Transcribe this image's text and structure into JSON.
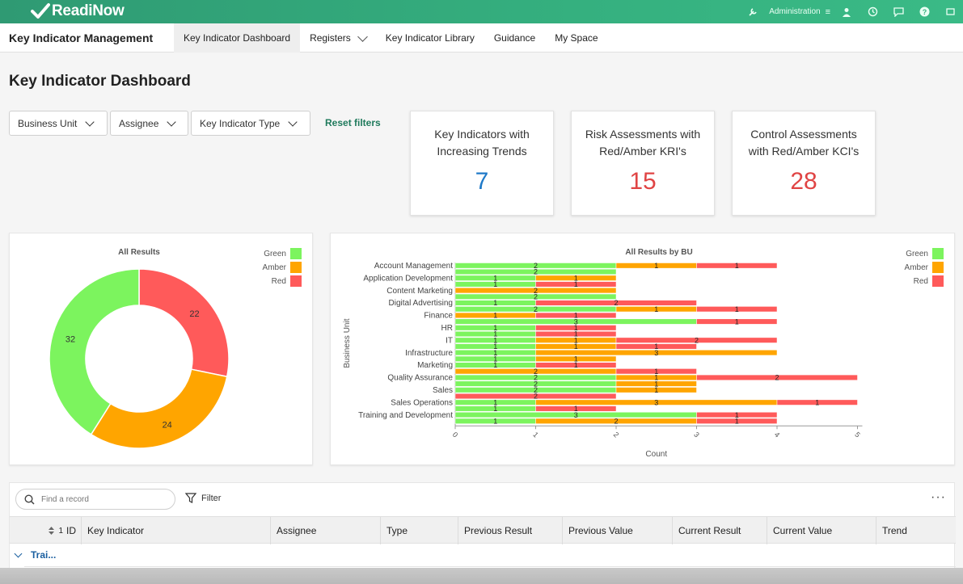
{
  "brand": {
    "name": "ReadiNow"
  },
  "topbar": {
    "admin_label": "Administration"
  },
  "nav": {
    "app_title": "Key Indicator Management",
    "tabs": [
      {
        "label": "Key Indicator Dashboard",
        "active": true
      },
      {
        "label": "Registers",
        "dropdown": true
      },
      {
        "label": "Key Indicator Library"
      },
      {
        "label": "Guidance"
      },
      {
        "label": "My Space"
      }
    ]
  },
  "page": {
    "title": "Key Indicator Dashboard"
  },
  "filters": {
    "business_unit": "Business Unit",
    "assignee": "Assignee",
    "type": "Key Indicator Type",
    "reset": "Reset filters"
  },
  "kpis": [
    {
      "label_line1": "Key Indicators with",
      "label_line2": "Increasing Trends",
      "value": "7",
      "color": "#1f7ac8"
    },
    {
      "label_line1": "Risk Assessments with",
      "label_line2": "Red/Amber KRI's",
      "value": "15",
      "color": "#e04444"
    },
    {
      "label_line1": "Control Assessments",
      "label_line2": "with Red/Amber KCI's",
      "value": "28",
      "color": "#e04444"
    }
  ],
  "colors": {
    "green": "#7cf45e",
    "amber": "#ffa500",
    "red": "#ff5a5a"
  },
  "chart_data": [
    {
      "type": "pie",
      "title": "All Results",
      "categories": [
        "Green",
        "Amber",
        "Red"
      ],
      "values": [
        32,
        24,
        22
      ],
      "legend": "top-right"
    },
    {
      "type": "bar",
      "orientation": "horizontal",
      "stacked": true,
      "title": "All Results by BU",
      "xlabel": "Count",
      "ylabel": "Business Unit",
      "xlim": [
        0,
        5
      ],
      "xticks": [
        "0",
        "1",
        "2",
        "3",
        "4",
        "5"
      ],
      "legend": "top-right",
      "legend_entries": [
        "Green",
        "Amber",
        "Red"
      ],
      "rows": [
        {
          "label": "Account Management",
          "g": 2,
          "a": 1,
          "r": 1
        },
        {
          "label": "",
          "g": 2,
          "a": 0,
          "r": 0
        },
        {
          "label": "Application Development",
          "g": 1,
          "a": 1,
          "r": 0
        },
        {
          "label": "",
          "g": 1,
          "a": 0,
          "r": 1
        },
        {
          "label": "Content Marketing",
          "g": 0,
          "a": 2,
          "r": 0
        },
        {
          "label": "",
          "g": 2,
          "a": 0,
          "r": 0
        },
        {
          "label": "Digital Advertising",
          "g": 1,
          "a": 0,
          "r": 2
        },
        {
          "label": "",
          "g": 2,
          "a": 1,
          "r": 1
        },
        {
          "label": "Finance",
          "g": 0,
          "a": 1,
          "r": 1
        },
        {
          "label": "",
          "g": 3,
          "a": 0,
          "r": 1
        },
        {
          "label": "HR",
          "g": 1,
          "a": 0,
          "r": 1
        },
        {
          "label": "",
          "g": 1,
          "a": 0,
          "r": 1
        },
        {
          "label": "IT",
          "g": 1,
          "a": 1,
          "r": 2
        },
        {
          "label": "",
          "g": 1,
          "a": 1,
          "r": 1
        },
        {
          "label": "Infrastructure",
          "g": 1,
          "a": 3,
          "r": 0
        },
        {
          "label": "",
          "g": 1,
          "a": 1,
          "r": 0
        },
        {
          "label": "Marketing",
          "g": 1,
          "a": 0,
          "r": 1
        },
        {
          "label": "",
          "g": 0,
          "a": 2,
          "r": 1
        },
        {
          "label": "Quality Assurance",
          "g": 2,
          "a": 1,
          "r": 2
        },
        {
          "label": "",
          "g": 2,
          "a": 1,
          "r": 0
        },
        {
          "label": "Sales",
          "g": 2,
          "a": 1,
          "r": 0
        },
        {
          "label": "",
          "g": 0,
          "a": 0,
          "r": 2
        },
        {
          "label": "Sales Operations",
          "g": 1,
          "a": 3,
          "r": 1
        },
        {
          "label": "",
          "g": 1,
          "a": 0,
          "r": 1
        },
        {
          "label": "Training and Development",
          "g": 3,
          "a": 0,
          "r": 1
        },
        {
          "label": "",
          "g": 1,
          "a": 2,
          "r": 1
        }
      ]
    }
  ],
  "grid": {
    "search_placeholder": "Find a record",
    "filter_label": "Filter",
    "more": "···",
    "sort_indicator": "1",
    "columns": [
      "ID",
      "Key Indicator",
      "Assignee",
      "Type",
      "Previous Result",
      "Previous Value",
      "Current Result",
      "Current Value",
      "Trend"
    ],
    "group_row": "Trai..."
  }
}
